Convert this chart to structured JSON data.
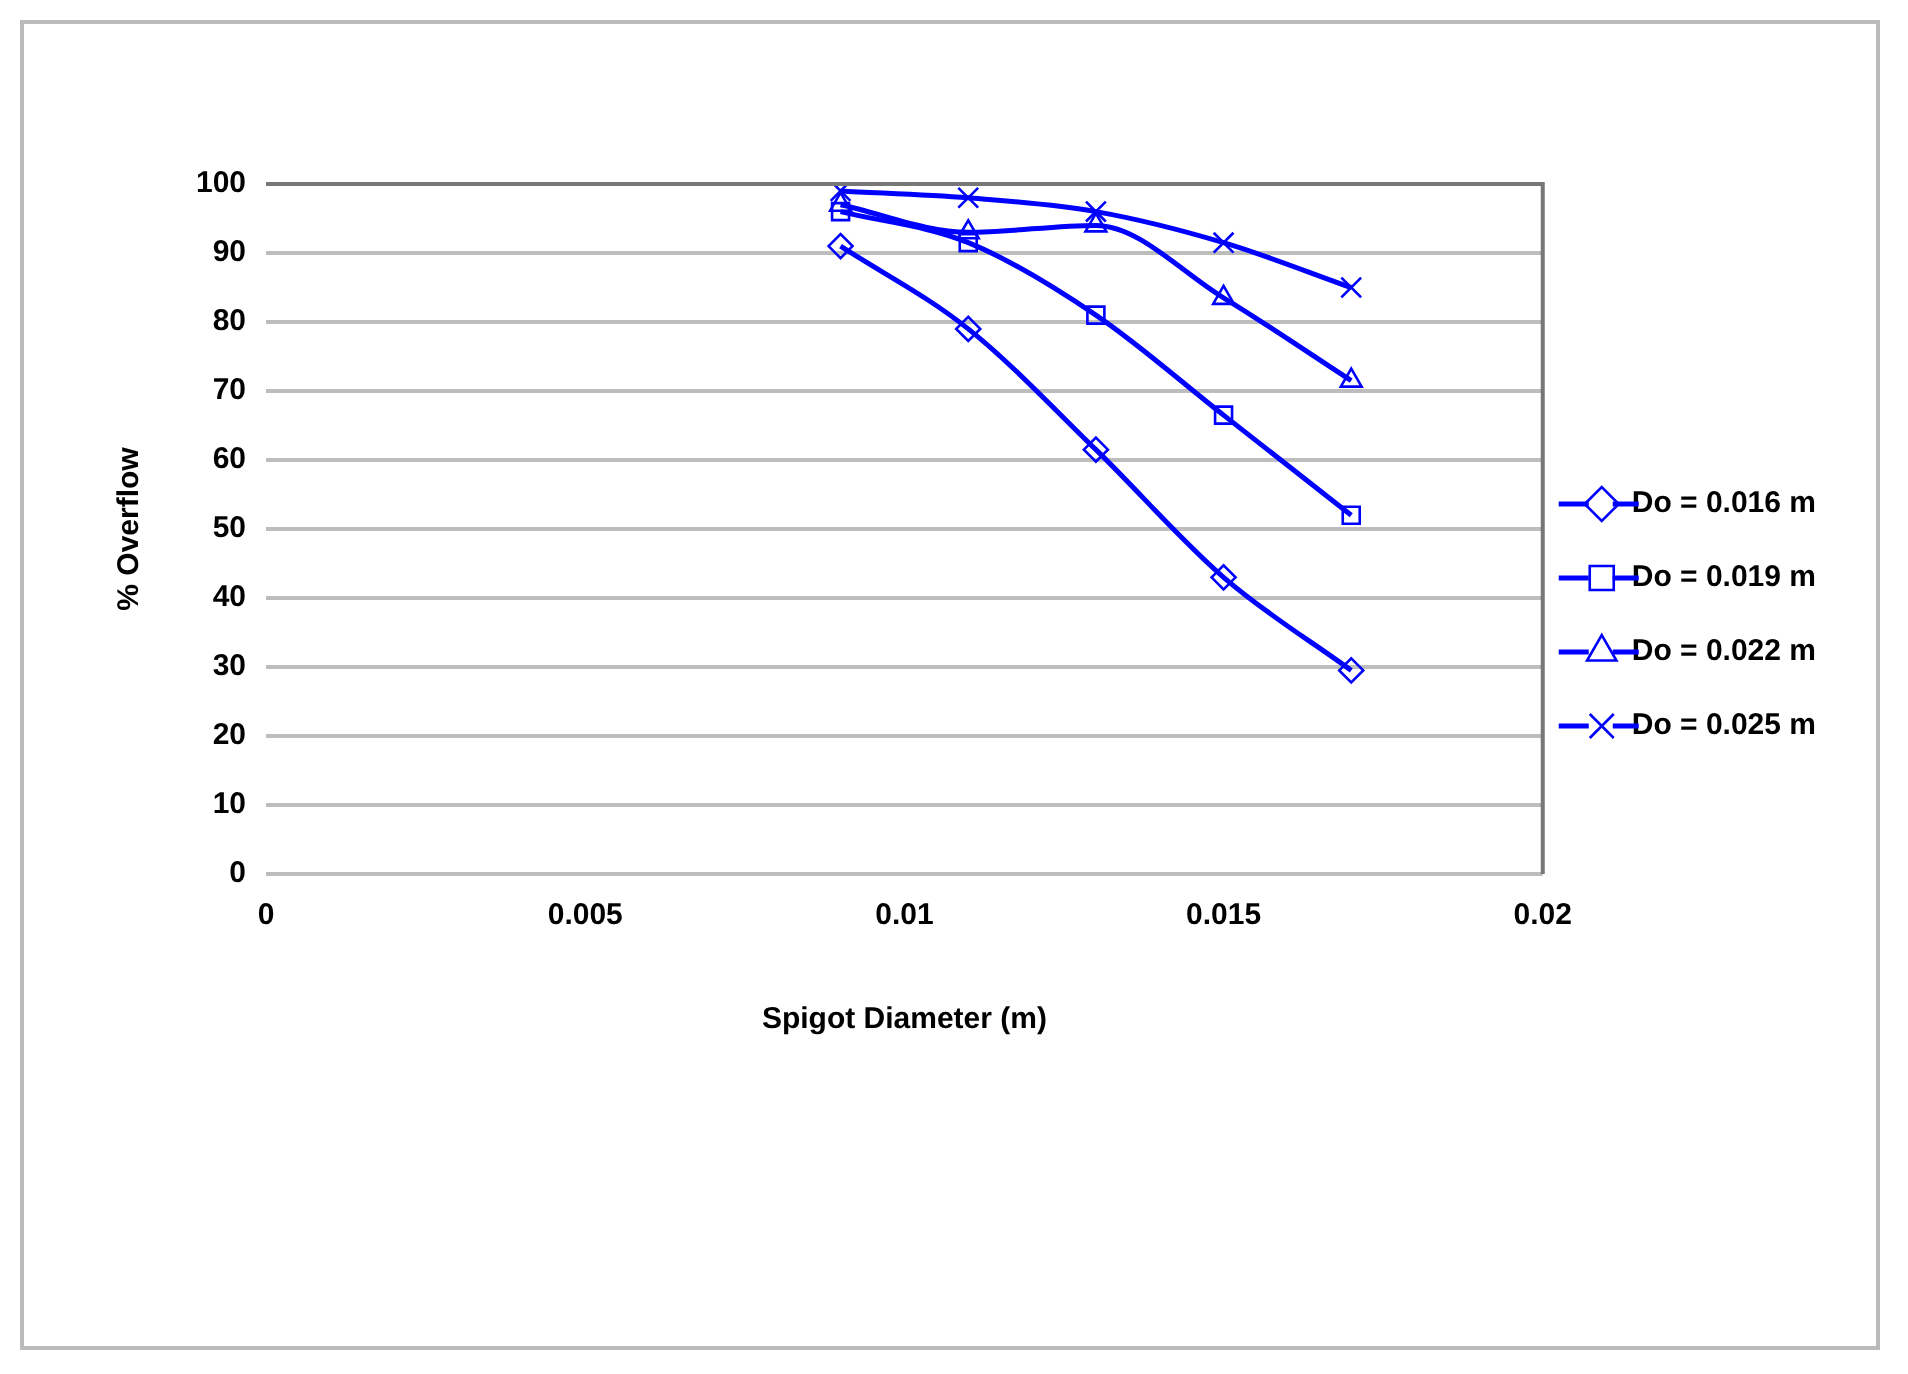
{
  "chart_data": {
    "type": "line",
    "xlabel": "Spigot Diameter (m)",
    "ylabel": "% Overflow",
    "xlim": [
      0,
      0.02
    ],
    "xticks": [
      0,
      0.005,
      0.01,
      0.015,
      0.02
    ],
    "ylim": [
      0,
      100
    ],
    "yticks": [
      0,
      10,
      20,
      30,
      40,
      50,
      60,
      70,
      80,
      90,
      100
    ],
    "grid": "y",
    "legend": "right",
    "series": [
      {
        "name": "Do = 0.016 m",
        "color": "#0000ff",
        "marker": "diamond",
        "x": [
          0.009,
          0.011,
          0.013,
          0.015,
          0.017
        ],
        "values": [
          91,
          79,
          61.5,
          43,
          29.5
        ]
      },
      {
        "name": "Do = 0.019 m",
        "color": "#0000ff",
        "marker": "square",
        "x": [
          0.009,
          0.011,
          0.013,
          0.015,
          0.017
        ],
        "values": [
          96,
          91.5,
          81,
          66.5,
          52
        ]
      },
      {
        "name": "Do = 0.022 m",
        "color": "#0000ff",
        "marker": "triangle",
        "x": [
          0.009,
          0.011,
          0.013,
          0.015,
          0.017
        ],
        "values": [
          97,
          93,
          94,
          83.5,
          71.5
        ]
      },
      {
        "name": "Do = 0.025 m",
        "color": "#0000ff",
        "marker": "cross",
        "x": [
          0.009,
          0.011,
          0.013,
          0.015,
          0.017
        ],
        "values": [
          99,
          98,
          96,
          91.5,
          85
        ]
      }
    ]
  }
}
